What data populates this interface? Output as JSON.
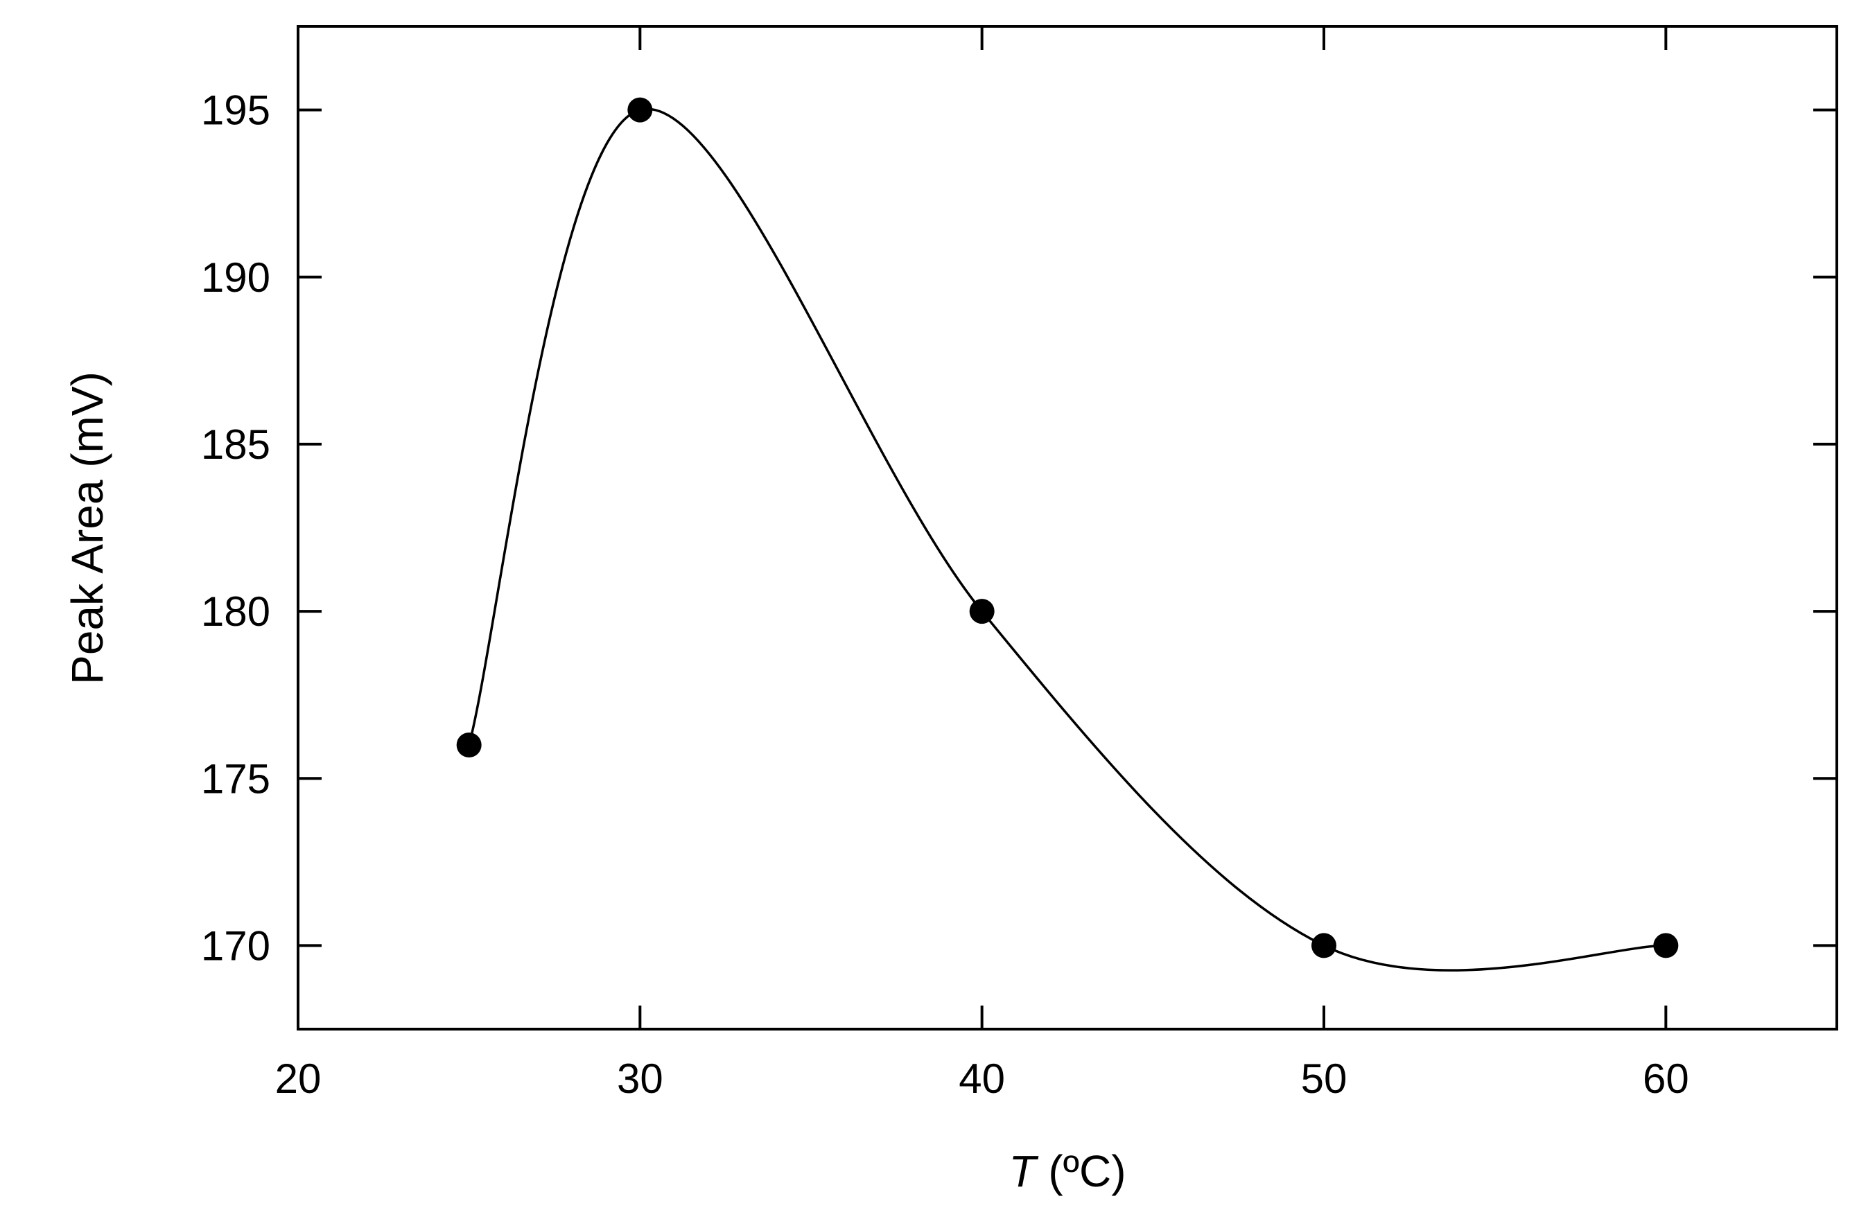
{
  "chart_data": {
    "type": "scatter",
    "title": "",
    "xlabel_var": "T",
    "xlabel_unit": " (ºC)",
    "ylabel": "Peak Area (mV)",
    "xlim": [
      20,
      65
    ],
    "ylim": [
      167.5,
      197.5
    ],
    "x_ticks": [
      20,
      30,
      40,
      50,
      60
    ],
    "y_ticks": [
      170,
      175,
      180,
      185,
      190,
      195
    ],
    "grid": false,
    "legend": "none",
    "series": [
      {
        "x": [
          25,
          30,
          40,
          50,
          60
        ],
        "y": [
          176,
          195,
          180,
          170,
          170
        ],
        "marker": "filled-circle",
        "fit_curve": "smooth spline",
        "color": "#000000"
      }
    ]
  }
}
